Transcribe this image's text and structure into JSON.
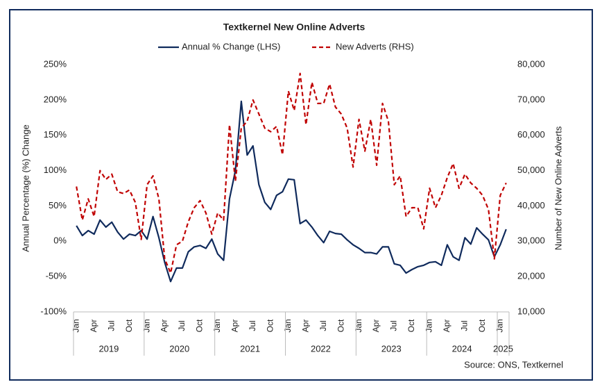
{
  "chart_data": {
    "type": "line",
    "title": "Textkernel New Online Adverts",
    "y_label": "Annual Percentage (%) Change",
    "y2_label": "Number of New Online Adverts",
    "source": "Source: ONS, Textkernel",
    "categories": [
      "Jan",
      null,
      null,
      "Apr",
      null,
      null,
      "Jul",
      null,
      null,
      "Oct",
      null,
      null,
      "Jan",
      null,
      null,
      "Apr",
      null,
      null,
      "Jul",
      null,
      null,
      "Oct",
      null,
      null,
      "Jan",
      null,
      null,
      "Apr",
      null,
      null,
      "Jul",
      null,
      null,
      "Oct",
      null,
      null,
      "Jan",
      null,
      null,
      "Apr",
      null,
      null,
      "Jul",
      null,
      null,
      "Oct",
      null,
      null,
      "Jan",
      null,
      null,
      "Apr",
      null,
      null,
      "Jul",
      null,
      null,
      "Oct",
      null,
      null,
      "Jan",
      null,
      null,
      "Apr",
      null,
      null,
      "Jul",
      null,
      null,
      "Oct",
      null,
      null,
      "Jan",
      null
    ],
    "years": [
      "2019",
      "2020",
      "2021",
      "2022",
      "2023",
      "2024",
      "2025"
    ],
    "series": [
      {
        "name": "Annual % Change (LHS)",
        "color": "#0f2a5c",
        "dashed": false,
        "axis": "y",
        "values": [
          22,
          8,
          15,
          10,
          30,
          20,
          27,
          13,
          3,
          10,
          8,
          15,
          3,
          35,
          5,
          -30,
          -57,
          -38,
          -38,
          -15,
          -8,
          -6,
          -10,
          3,
          -18,
          -27,
          60,
          100,
          198,
          122,
          135,
          80,
          55,
          45,
          65,
          70,
          88,
          87,
          25,
          30,
          20,
          8,
          -2,
          14,
          11,
          10,
          2,
          -5,
          -10,
          -16,
          -16,
          -18,
          -8,
          -8,
          -32,
          -34,
          -45,
          -40,
          -36,
          -34,
          -30,
          -29,
          -34,
          -5,
          -22,
          -27,
          5,
          -4,
          19,
          10,
          2,
          -22,
          -5,
          17
        ]
      },
      {
        "name": "New Adverts (RHS)",
        "color": "#c00000",
        "dashed": true,
        "axis": "y2",
        "values": [
          45500,
          36000,
          42000,
          37000,
          50000,
          47500,
          49000,
          44000,
          43500,
          44500,
          41000,
          30500,
          46000,
          48500,
          42000,
          25000,
          21000,
          29000,
          30000,
          35500,
          39500,
          41500,
          38000,
          32000,
          38000,
          36000,
          63000,
          47000,
          62000,
          64000,
          70000,
          66000,
          62000,
          61000,
          62500,
          54500,
          72500,
          67000,
          77500,
          63000,
          75000,
          69000,
          69000,
          74500,
          68000,
          66000,
          62000,
          51000,
          64500,
          55500,
          64500,
          51500,
          69000,
          64000,
          46000,
          48500,
          37000,
          39500,
          39500,
          33500,
          45000,
          39500,
          43000,
          48000,
          52000,
          45000,
          49000,
          46500,
          45000,
          43000,
          39000,
          25000,
          43000,
          46500
        ]
      }
    ],
    "ylim": [
      -100,
      250
    ],
    "yticks": [
      {
        "value": -100,
        "label": "-100%"
      },
      {
        "value": -50,
        "label": "-50%"
      },
      {
        "value": 0,
        "label": "0%"
      },
      {
        "value": 50,
        "label": "50%"
      },
      {
        "value": 100,
        "label": "100%"
      },
      {
        "value": 150,
        "label": "150%"
      },
      {
        "value": 200,
        "label": "200%"
      },
      {
        "value": 250,
        "label": "250%"
      }
    ],
    "y2lim": [
      10000,
      80000
    ],
    "y2ticks": [
      {
        "value": 10000,
        "label": "10,000"
      },
      {
        "value": 20000,
        "label": "20,000"
      },
      {
        "value": 30000,
        "label": "30,000"
      },
      {
        "value": 40000,
        "label": "40,000"
      },
      {
        "value": 50000,
        "label": "50,000"
      },
      {
        "value": 60000,
        "label": "60,000"
      },
      {
        "value": 70000,
        "label": "70,000"
      },
      {
        "value": 80000,
        "label": "80,000"
      }
    ],
    "grid": false
  }
}
